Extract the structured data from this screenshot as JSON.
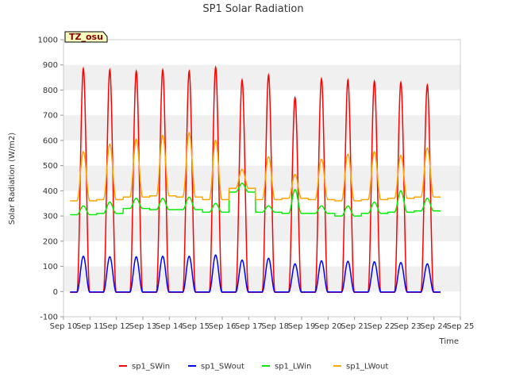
{
  "chart_data": {
    "type": "line",
    "title": "SP1 Solar Radiation",
    "xlabel": "Time",
    "ylabel": "Solar Radiation (W/m2)",
    "annotation": "TZ_osu",
    "ylim": [
      -100,
      1000
    ],
    "yticks": [
      -100,
      0,
      100,
      200,
      300,
      400,
      500,
      600,
      700,
      800,
      900,
      1000
    ],
    "xlim": [
      10,
      25
    ],
    "xticks": [
      10,
      11,
      12,
      13,
      14,
      15,
      16,
      17,
      18,
      19,
      20,
      21,
      22,
      23,
      24,
      25
    ],
    "xtick_labels": [
      "Sep 10",
      "Sep 11",
      "Sep 12",
      "Sep 13",
      "Sep 14",
      "Sep 15",
      "Sep 16",
      "Sep 17",
      "Sep 18",
      "Sep 19",
      "Sep 20",
      "Sep 21",
      "Sep 22",
      "Sep 23",
      "Sep 24",
      "Sep 25"
    ],
    "grid": "horizontal bands",
    "legend_position": "bottom",
    "day_centers": [
      10.75,
      11.75,
      12.75,
      13.75,
      14.75,
      15.75,
      16.75,
      17.75,
      18.75,
      19.75,
      20.75,
      21.75,
      22.75,
      23.75
    ],
    "series": [
      {
        "name": "sp1_SWin",
        "color": "#ff0000",
        "night_value": -3,
        "daily_peak": [
          885,
          880,
          875,
          880,
          875,
          890,
          840,
          860,
          770,
          845,
          840,
          835,
          830,
          820
        ]
      },
      {
        "name": "sp1_SWout",
        "color": "#0000ff",
        "night_value": -2,
        "daily_peak": [
          140,
          138,
          138,
          140,
          140,
          145,
          125,
          132,
          110,
          122,
          120,
          118,
          115,
          110
        ]
      },
      {
        "name": "sp1_LWin",
        "color": "#00ee00",
        "night_value": [
          305,
          310,
          330,
          325,
          325,
          315,
          395,
          315,
          310,
          310,
          300,
          310,
          315,
          320
        ],
        "daily_peak": [
          340,
          355,
          370,
          370,
          375,
          350,
          430,
          340,
          405,
          340,
          340,
          355,
          400,
          370
        ]
      },
      {
        "name": "sp1_LWout",
        "color": "#ffa500",
        "night_value": [
          360,
          365,
          375,
          380,
          375,
          365,
          410,
          365,
          370,
          365,
          360,
          365,
          370,
          375
        ],
        "daily_peak": [
          555,
          585,
          605,
          620,
          630,
          600,
          485,
          535,
          465,
          525,
          545,
          555,
          540,
          570
        ]
      }
    ]
  }
}
